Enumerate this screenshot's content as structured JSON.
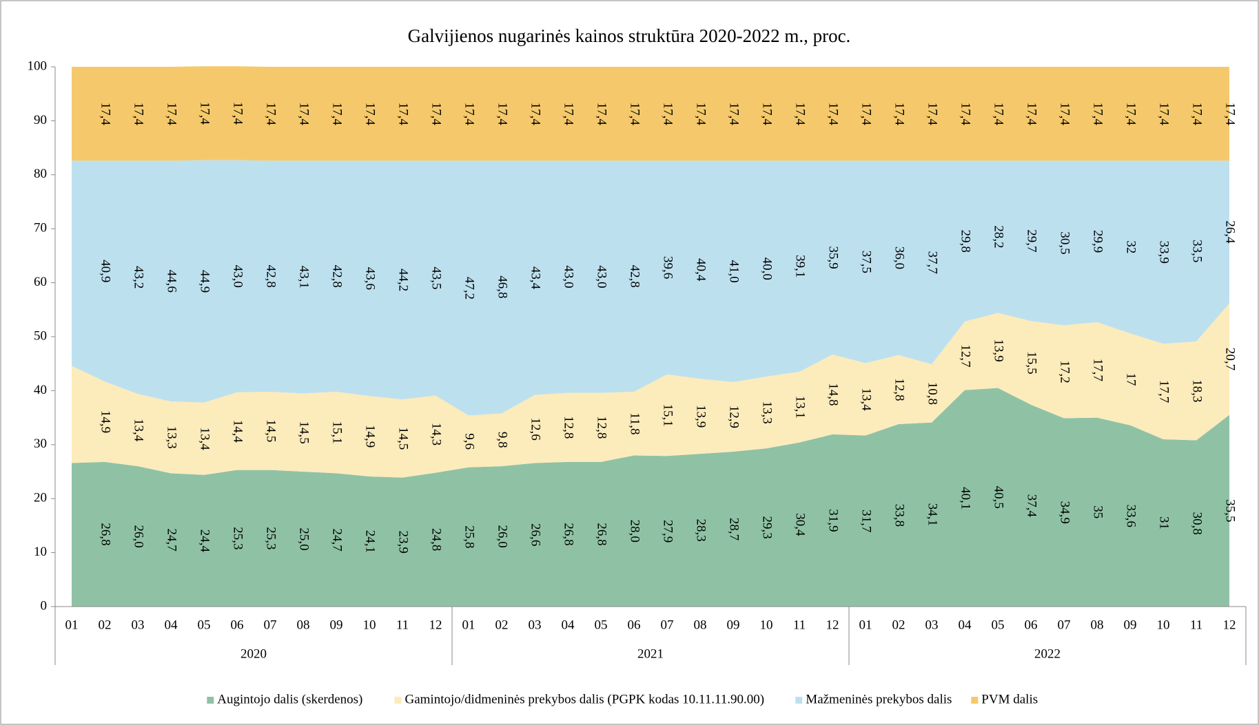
{
  "chart_data": {
    "type": "stacked_area",
    "title": "Galvijienos nugarinės kainos struktūra 2020-2022 m., proc.",
    "categories": [
      "01",
      "02",
      "03",
      "04",
      "05",
      "06",
      "07",
      "08",
      "09",
      "10",
      "11",
      "12",
      "01",
      "02",
      "03",
      "04",
      "05",
      "06",
      "07",
      "08",
      "09",
      "10",
      "11",
      "12",
      "01",
      "02",
      "03",
      "04",
      "05",
      "06",
      "07",
      "08",
      "09",
      "10",
      "11",
      "12"
    ],
    "years": [
      "2020",
      "2021",
      "2022"
    ],
    "ylim": [
      0,
      100
    ],
    "yticks": [
      0,
      10,
      20,
      30,
      40,
      50,
      60,
      70,
      80,
      90,
      100
    ],
    "legend": "bottom",
    "series": [
      {
        "name": "Augintojo dalis (skerdenos)",
        "color": "#8fc2a5",
        "values": [
          26.6,
          26.8,
          26.0,
          24.7,
          24.4,
          25.3,
          25.3,
          25.0,
          24.7,
          24.1,
          23.9,
          24.8,
          25.8,
          26.0,
          26.6,
          26.8,
          26.8,
          28.0,
          27.9,
          28.3,
          28.7,
          29.3,
          30.4,
          31.9,
          31.7,
          33.8,
          34.1,
          40.1,
          40.5,
          37.4,
          34.9,
          35,
          33.6,
          31,
          30.8,
          35.5
        ],
        "value_labels": [
          null,
          "26,8",
          "26,0",
          "24,7",
          "24,4",
          "25,3",
          "25,3",
          "25,0",
          "24,7",
          "24,1",
          "23,9",
          "24,8",
          "25,8",
          "26,0",
          "26,6",
          "26,8",
          "26,8",
          "28,0",
          "27,9",
          "28,3",
          "28,7",
          "29,3",
          "30,4",
          "31,9",
          "31,7",
          "33,8",
          "34,1",
          "40,1",
          "40,5",
          "37,4",
          "34,9",
          "35",
          "33,6",
          "31",
          "30,8",
          "35,5"
        ]
      },
      {
        "name": "Gamintojo/didmeninės prekybos dalis (PGPK kodas 10.11.11.90.00)",
        "color": "#fcebbb",
        "values": [
          18.0,
          14.9,
          13.4,
          13.3,
          13.4,
          14.4,
          14.5,
          14.5,
          15.1,
          14.9,
          14.5,
          14.3,
          9.6,
          9.8,
          12.6,
          12.8,
          12.8,
          11.8,
          15.1,
          13.9,
          12.9,
          13.3,
          13.1,
          14.8,
          13.4,
          12.8,
          10.8,
          12.7,
          13.9,
          15.5,
          17.2,
          17.7,
          17,
          17.7,
          18.3,
          20.7
        ],
        "value_labels": [
          null,
          "14,9",
          "13,4",
          "13,3",
          "13,4",
          "14,4",
          "14,5",
          "14,5",
          "15,1",
          "14,9",
          "14,5",
          "14,3",
          "9,6",
          "9,8",
          "12,6",
          "12,8",
          "12,8",
          "11,8",
          "15,1",
          "13,9",
          "12,9",
          "13,3",
          "13,1",
          "14,8",
          "13,4",
          "12,8",
          "10,8",
          "12,7",
          "13,9",
          "15,5",
          "17,2",
          "17,7",
          "17",
          "17,7",
          "18,3",
          "20,7"
        ]
      },
      {
        "name": "Mažmeninės prekybos dalis",
        "color": "#bde0ef",
        "values": [
          38.0,
          40.9,
          43.2,
          44.6,
          44.9,
          43.0,
          42.8,
          43.1,
          42.8,
          43.6,
          44.2,
          43.5,
          47.2,
          46.8,
          43.4,
          43.0,
          43.0,
          42.8,
          39.6,
          40.4,
          41.0,
          40.0,
          39.1,
          35.9,
          37.5,
          36.0,
          37.7,
          29.8,
          28.2,
          29.7,
          30.5,
          29.9,
          32,
          33.9,
          33.5,
          26.4
        ],
        "value_labels": [
          null,
          "40,9",
          "43,2",
          "44,6",
          "44,9",
          "43,0",
          "42,8",
          "43,1",
          "42,8",
          "43,6",
          "44,2",
          "43,5",
          "47,2",
          "46,8",
          "43,4",
          "43,0",
          "43,0",
          "42,8",
          "39,6",
          "40,4",
          "41,0",
          "40,0",
          "39,1",
          "35,9",
          "37,5",
          "36,0",
          "37,7",
          "29,8",
          "28,2",
          "29,7",
          "30,5",
          "29,9",
          "32",
          "33,9",
          "33,5",
          "26,4"
        ]
      },
      {
        "name": "PVM dalis",
        "color": "#f5c96b",
        "values": [
          17.4,
          17.4,
          17.4,
          17.4,
          17.4,
          17.4,
          17.4,
          17.4,
          17.4,
          17.4,
          17.4,
          17.4,
          17.4,
          17.4,
          17.4,
          17.4,
          17.4,
          17.4,
          17.4,
          17.4,
          17.4,
          17.4,
          17.4,
          17.4,
          17.4,
          17.4,
          17.4,
          17.4,
          17.4,
          17.4,
          17.4,
          17.4,
          17.4,
          17.4,
          17.4,
          17.4
        ],
        "value_labels": [
          null,
          "17,4",
          "17,4",
          "17,4",
          "17,4",
          "17,4",
          "17,4",
          "17,4",
          "17,4",
          "17,4",
          "17,4",
          "17,4",
          "17,4",
          "17,4",
          "17,4",
          "17,4",
          "17,4",
          "17,4",
          "17,4",
          "17,4",
          "17,4",
          "17,4",
          "17,4",
          "17,4",
          "17,4",
          "17,4",
          "17,4",
          "17,4",
          "17,4",
          "17,4",
          "17,4",
          "17,4",
          "17,4",
          "17,4",
          "17,4",
          "17,4"
        ]
      }
    ]
  }
}
